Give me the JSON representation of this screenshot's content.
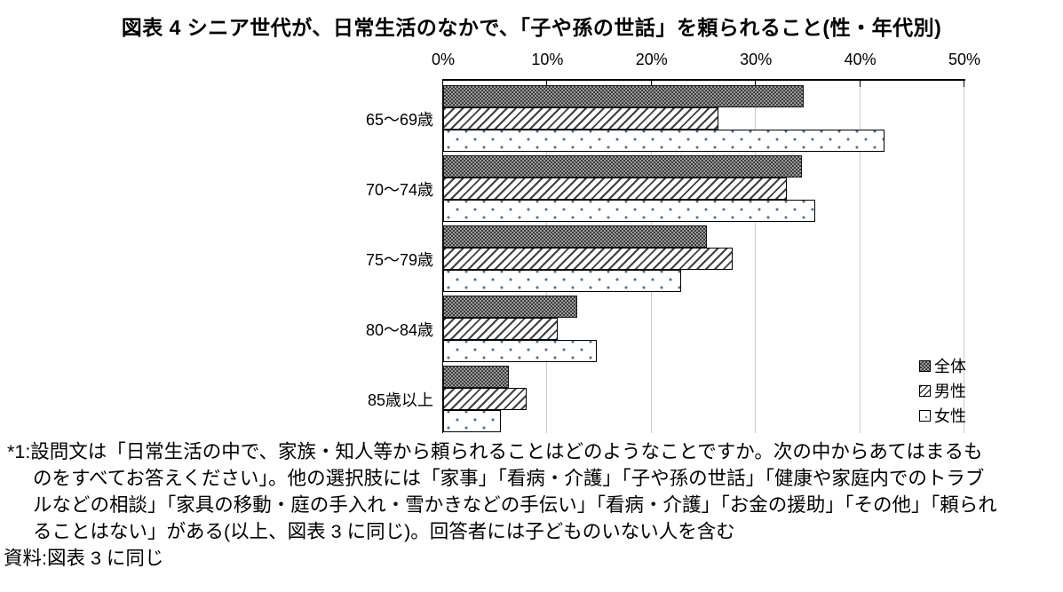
{
  "title": "図表 4 シニア世代が、日常生活のなかで、「子や孫の世話」を頼られること(性・年代別)",
  "chart_data": {
    "type": "bar",
    "orientation": "horizontal",
    "title": "図表 4 シニア世代が、日常生活のなかで、「子や孫の世話」を頼られること(性・年代別)",
    "categories": [
      "65〜69歳",
      "70〜74歳",
      "75〜79歳",
      "80〜84歳",
      "85歳以上"
    ],
    "series": [
      {
        "name": "全体",
        "pattern": "dark-checker",
        "values": [
          34.6,
          34.4,
          25.3,
          12.9,
          6.3
        ]
      },
      {
        "name": "男性",
        "pattern": "diagonal-hatch",
        "values": [
          26.4,
          33.0,
          27.8,
          11.0,
          8.0
        ]
      },
      {
        "name": "女性",
        "pattern": "blue-dots",
        "values": [
          42.3,
          35.7,
          22.8,
          14.7,
          5.5
        ]
      }
    ],
    "xlabel": "",
    "ylabel": "",
    "xlim": [
      0,
      50
    ],
    "x_ticks": [
      "0%",
      "10%",
      "20%",
      "30%",
      "40%",
      "50%"
    ],
    "grid": true,
    "axis_position": "top",
    "legend_position": "bottom-right"
  },
  "legend": {
    "items": [
      {
        "label": "全体"
      },
      {
        "label": "男性"
      },
      {
        "label": "女性"
      }
    ]
  },
  "footnotes": {
    "lines": [
      "*1:設問文は「日常生活の中で、家族・知人等から頼られることはどのようなことですか。次の中からあてはまるも",
      "のをすべてお答えください」。他の選択肢には「家事」「看病・介護」「子や孫の世話」「健康や家庭内でのトラブ",
      "ルなどの相談」「家具の移動・庭の手入れ・雪かきなどの手伝い」「看病・介護」「お金の援助」「その他」「頼られ",
      "ることはない」がある(以上、図表 3 に同じ)。回答者には子どものいない人を含む",
      "資料:図表 3 に同じ"
    ]
  },
  "colors": {
    "dot_blue": "#41719c",
    "gridline": "#c9c9c9",
    "checker_dark": "#3c3c3c",
    "checker_light": "#9b9b9b",
    "axis": "#000000",
    "background": "#ffffff"
  }
}
